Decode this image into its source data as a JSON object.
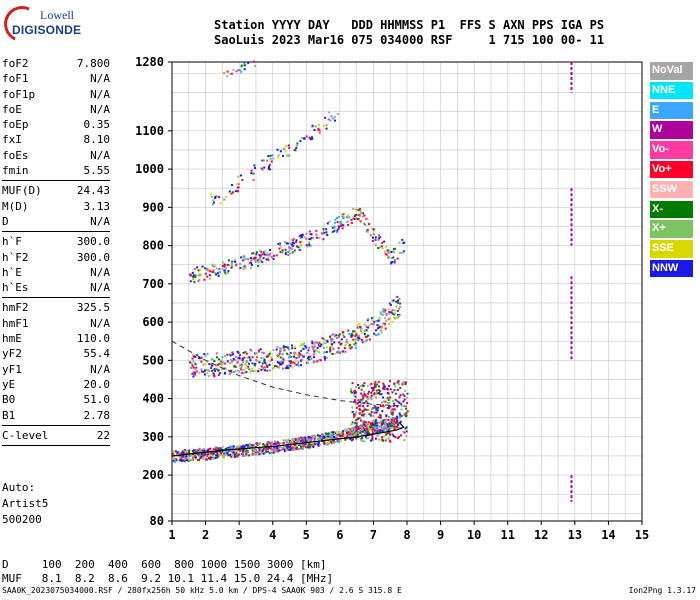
{
  "logo": {
    "line1": "Lowell",
    "line2": "DIGISONDE"
  },
  "header": {
    "line1": "Station YYYY DAY   DDD HHMMSS P1  FFS S AXN PPS IGA PS",
    "line2": "SaoLuis 2023 Mar16 075 034000 RSF     1 715 100 00- 11"
  },
  "params": {
    "group1": [
      {
        "name": "foF2",
        "value": "7.800"
      },
      {
        "name": "foF1",
        "value": "N/A"
      },
      {
        "name": "foF1p",
        "value": "N/A"
      },
      {
        "name": "foE",
        "value": "N/A"
      },
      {
        "name": "foEp",
        "value": "0.35"
      },
      {
        "name": "fxI",
        "value": "8.10"
      },
      {
        "name": "foEs",
        "value": "N/A"
      },
      {
        "name": "fmin",
        "value": "5.55"
      }
    ],
    "group2": [
      {
        "name": "MUF(D)",
        "value": "24.43"
      },
      {
        "name": "M(D)",
        "value": "3.13"
      },
      {
        "name": "D",
        "value": "N/A"
      }
    ],
    "group3": [
      {
        "name": "h`F",
        "value": "300.0"
      },
      {
        "name": "h`F2",
        "value": "300.0"
      },
      {
        "name": "h`E",
        "value": "N/A"
      },
      {
        "name": "h`Es",
        "value": "N/A"
      }
    ],
    "group4": [
      {
        "name": "hmF2",
        "value": "325.5"
      },
      {
        "name": "hmF1",
        "value": "N/A"
      },
      {
        "name": "hmE",
        "value": "110.0"
      },
      {
        "name": "yF2",
        "value": "55.4"
      },
      {
        "name": "yF1",
        "value": "N/A"
      },
      {
        "name": "yE",
        "value": "20.0"
      },
      {
        "name": "B0",
        "value": "51.0"
      },
      {
        "name": "B1",
        "value": "2.78"
      }
    ],
    "group5": [
      {
        "name": "C-level",
        "value": "22"
      }
    ]
  },
  "auto": {
    "line1": "Auto:",
    "line2": "Artist5",
    "line3": "500200"
  },
  "legend": [
    {
      "label": "NoVal",
      "color": "#a6a6a6"
    },
    {
      "label": "NNE",
      "color": "#00e5ff"
    },
    {
      "label": "E",
      "color": "#3aa6ff"
    },
    {
      "label": "W",
      "color": "#b0009c"
    },
    {
      "label": "Vo-",
      "color": "#ff3aa0"
    },
    {
      "label": "Vo+",
      "color": "#ff0028"
    },
    {
      "label": "SSW",
      "color": "#ffb0b0"
    },
    {
      "label": "X-",
      "color": "#007a00"
    },
    {
      "label": "X+",
      "color": "#7cc460"
    },
    {
      "label": "SSE",
      "color": "#d8d800"
    },
    {
      "label": "NNW",
      "color": "#1a1ae6"
    }
  ],
  "bottom": {
    "line1": "D     100  200  400  600  800 1000 1500 3000 [km]",
    "line2": "MUF   8.1  8.2  8.6  9.2 10.1 11.4 15.0 24.4 [MHz]"
  },
  "footer": "SAA0K_2023075034000.RSF / 280fx256h 50 kHz 5.0 km / DPS-4 SAA0K 903 / 2.6 S 315.8 E",
  "version": "Ion2Png 1.3.17",
  "chart_data": {
    "type": "scatter",
    "x_ticks": [
      1,
      2,
      3,
      4,
      5,
      6,
      7,
      8,
      9,
      10,
      11,
      12,
      13,
      14,
      15
    ],
    "y_ticks": [
      80,
      200,
      300,
      400,
      500,
      600,
      700,
      800,
      900,
      1000,
      1100,
      1280
    ],
    "xlim": [
      1,
      15
    ],
    "ylim": [
      80,
      1280
    ],
    "grid": true,
    "legend_position": "right",
    "traces": [
      {
        "name": "1-hop F trace",
        "x": [
          1.0,
          2.0,
          3.0,
          4.0,
          5.0,
          6.0,
          6.5,
          7.0,
          7.5,
          7.8
        ],
        "y": [
          245,
          252,
          260,
          270,
          282,
          298,
          310,
          320,
          330,
          340
        ]
      },
      {
        "name": "2-hop F trace",
        "x": [
          1.5,
          2.5,
          3.5,
          4.5,
          5.5,
          6.5,
          7.2,
          7.8
        ],
        "y": [
          475,
          480,
          490,
          500,
          520,
          555,
          590,
          640
        ]
      },
      {
        "name": "3-hop F trace",
        "x": [
          1.5,
          2.5,
          3.5,
          4.5,
          5.5,
          6.5,
          7.5,
          7.9
        ],
        "y": [
          715,
          735,
          760,
          790,
          830,
          880,
          760,
          800
        ]
      },
      {
        "name": "4-hop F trace",
        "x": [
          2.0,
          3.0,
          4.0,
          5.0,
          6.0
        ],
        "y": [
          900,
          960,
          1020,
          1080,
          1150
        ]
      },
      {
        "name": "5-hop F trace",
        "x": [
          2.5,
          3.0,
          3.5
        ],
        "y": [
          1240,
          1260,
          1280
        ]
      }
    ],
    "profile_curve": {
      "x": [
        1.0,
        2.5,
        4.0,
        5.5,
        6.5,
        7.2,
        7.7,
        7.9,
        7.8
      ],
      "y": [
        250,
        265,
        275,
        290,
        300,
        310,
        318,
        325,
        335
      ]
    },
    "dashed_curve": {
      "x": [
        1.0,
        2.0,
        3.0,
        4.0,
        5.0,
        6.0,
        7.0,
        8.0
      ],
      "y": [
        550,
        500,
        460,
        430,
        410,
        395,
        385,
        380
      ]
    },
    "vertical_line": {
      "x": 12.9,
      "y_ranges": [
        [
          500,
          720
        ],
        [
          800,
          950
        ],
        [
          1200,
          1280
        ],
        [
          130,
          200
        ]
      ]
    }
  }
}
